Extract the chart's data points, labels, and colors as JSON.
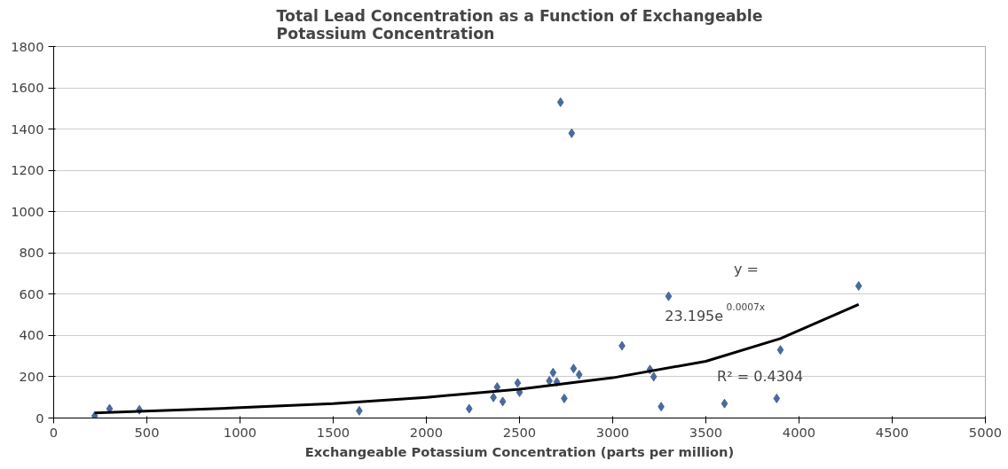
{
  "chart_data": {
    "type": "scatter",
    "title": "Total Lead Concentration as a Function of Exchangeable\nPotassium Concentration",
    "xlabel": "Exchangeable Potassium Concentration (parts per million)",
    "series": [
      {
        "color": "#4a6a9c",
        "marker": "diamond",
        "x": [
          220,
          300,
          460,
          1640,
          2230,
          2360,
          2380,
          2410,
          2490,
          2500,
          2660,
          2680,
          2700,
          2720,
          2740,
          2780,
          2790,
          2820,
          3050,
          3200,
          3220,
          3260,
          3300,
          3600,
          3880,
          3900,
          4320
        ],
        "values": [
          10,
          45,
          40,
          35,
          45,
          100,
          150,
          80,
          170,
          125,
          180,
          220,
          175,
          1530,
          95,
          1380,
          240,
          210,
          350,
          235,
          200,
          55,
          590,
          70,
          95,
          330,
          640
        ]
      },
      {
        "type": "line",
        "color": "#000000",
        "marker": "none",
        "line_style": "solid",
        "x": [
          220,
          1000,
          1500,
          2000,
          2500,
          3000,
          3500,
          3900,
          4320
        ],
        "values": [
          25,
          50,
          70,
          100,
          140,
          195,
          275,
          385,
          550
        ]
      }
    ],
    "xlim": [
      0,
      5000
    ],
    "xticks": [
      0,
      500,
      1000,
      1500,
      2000,
      2500,
      3000,
      3500,
      4000,
      4500,
      5000
    ],
    "ylim": [
      0,
      1800
    ],
    "yticks": [
      0,
      200,
      400,
      600,
      800,
      1000,
      1200,
      1400,
      1600,
      1800
    ],
    "grid": "y",
    "annotations": [
      "y =",
      "23.195e$^{0.0007x}$",
      "R² = 0.4304"
    ]
  }
}
